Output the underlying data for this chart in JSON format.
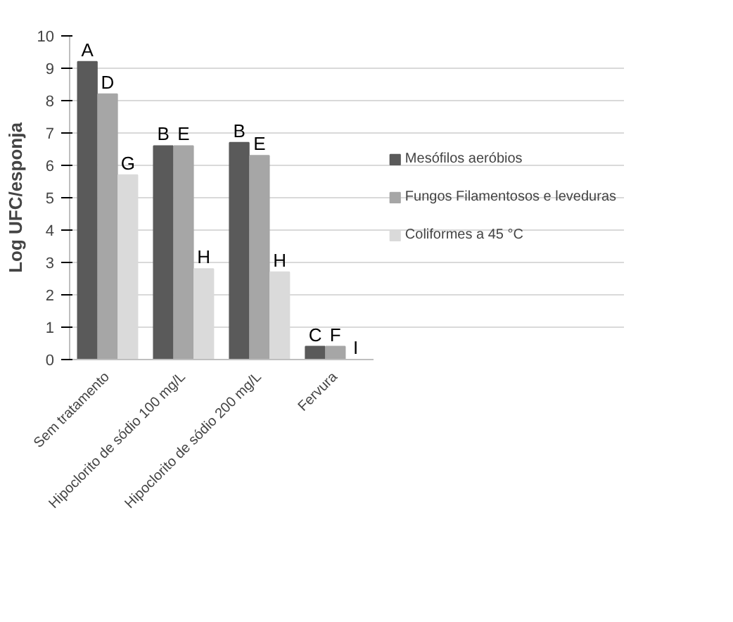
{
  "chart_data": {
    "type": "bar",
    "ylabel": "Log UFC/esponja",
    "categories": [
      "Sem tratamento",
      "Hipoclorito de sódio 100 mg/L",
      "Hipoclorito de sódio 200 mg/L",
      "Fervura"
    ],
    "series": [
      {
        "name": "Mesófilos aeróbios",
        "color": "#5a5a5a",
        "values": [
          9.2,
          6.6,
          6.7,
          0.4
        ],
        "value_labels": [
          "A",
          "B",
          "B",
          "C"
        ]
      },
      {
        "name": "Fungos Filamentosos e leveduras",
        "color": "#a6a6a6",
        "values": [
          8.2,
          6.6,
          6.3,
          0.4
        ],
        "value_labels": [
          "D",
          "E",
          "E",
          "F"
        ]
      },
      {
        "name": "Coliformes a 45 °C",
        "color": "#dadada",
        "values": [
          5.7,
          2.8,
          2.7,
          0
        ],
        "value_labels": [
          "G",
          "H",
          "H",
          "I"
        ]
      }
    ],
    "ylim": [
      0,
      10
    ],
    "yticks": [
      0,
      1,
      2,
      3,
      4,
      5,
      6,
      7,
      8,
      9,
      10
    ],
    "grid": "y",
    "legend": "right"
  }
}
